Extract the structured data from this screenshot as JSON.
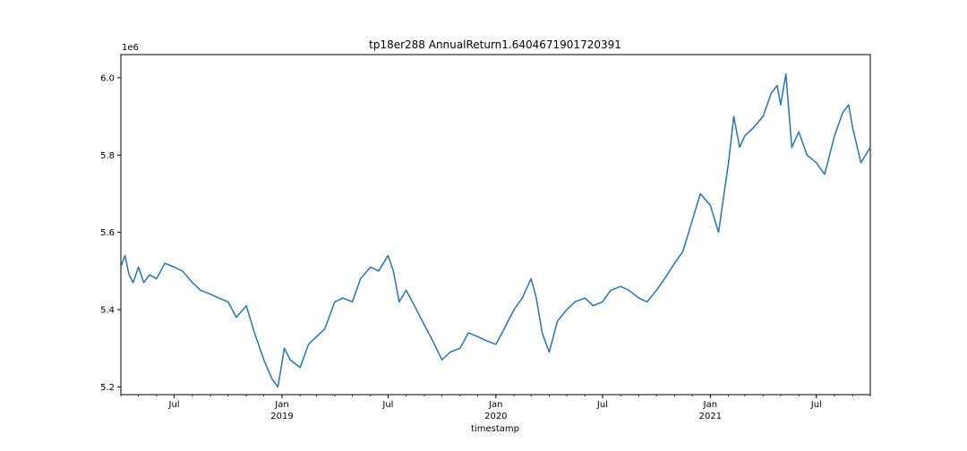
{
  "chart_data": {
    "type": "line",
    "title": "tp18er288 AnnualReturn1.6404671901720391",
    "xlabel": "timestamp",
    "ylabel": "",
    "y_offset_label": "1e6",
    "y_scale": 1000000,
    "ylim": [
      5.18,
      6.06
    ],
    "yticks": [
      5.2,
      5.4,
      5.6,
      5.8,
      6.0
    ],
    "ytick_labels": [
      "5.2",
      "5.4",
      "5.6",
      "5.8",
      "6.0"
    ],
    "xlim": [
      "2018-04-01",
      "2021-10-01"
    ],
    "xticks_major": [
      {
        "date": "2018-07-01",
        "label": "Jul",
        "year": ""
      },
      {
        "date": "2019-01-01",
        "label": "Jan",
        "year": "2019"
      },
      {
        "date": "2019-07-01",
        "label": "Jul",
        "year": ""
      },
      {
        "date": "2020-01-01",
        "label": "Jan",
        "year": "2020"
      },
      {
        "date": "2020-07-01",
        "label": "Jul",
        "year": ""
      },
      {
        "date": "2021-01-01",
        "label": "Jan",
        "year": "2021"
      },
      {
        "date": "2021-07-01",
        "label": "Jul",
        "year": ""
      }
    ],
    "color": "#1f77b4",
    "grid": false,
    "series": [
      {
        "name": "",
        "x": [
          "2018-04-01",
          "2018-04-08",
          "2018-04-15",
          "2018-04-22",
          "2018-05-01",
          "2018-05-10",
          "2018-05-20",
          "2018-06-01",
          "2018-06-15",
          "2018-07-01",
          "2018-07-15",
          "2018-08-01",
          "2018-08-15",
          "2018-09-01",
          "2018-09-15",
          "2018-10-01",
          "2018-10-15",
          "2018-11-01",
          "2018-11-15",
          "2018-12-01",
          "2018-12-15",
          "2018-12-25",
          "2019-01-05",
          "2019-01-15",
          "2019-02-01",
          "2019-02-15",
          "2019-03-01",
          "2019-03-15",
          "2019-04-01",
          "2019-04-15",
          "2019-05-01",
          "2019-05-15",
          "2019-06-01",
          "2019-06-15",
          "2019-07-01",
          "2019-07-10",
          "2019-07-20",
          "2019-08-01",
          "2019-08-15",
          "2019-09-01",
          "2019-09-15",
          "2019-10-01",
          "2019-10-15",
          "2019-11-01",
          "2019-11-15",
          "2019-12-01",
          "2019-12-15",
          "2020-01-01",
          "2020-01-15",
          "2020-02-01",
          "2020-02-15",
          "2020-03-01",
          "2020-03-10",
          "2020-03-20",
          "2020-04-01",
          "2020-04-15",
          "2020-05-01",
          "2020-05-15",
          "2020-06-01",
          "2020-06-15",
          "2020-07-01",
          "2020-07-15",
          "2020-08-01",
          "2020-08-15",
          "2020-09-01",
          "2020-09-15",
          "2020-10-01",
          "2020-10-15",
          "2020-11-01",
          "2020-11-15",
          "2020-12-01",
          "2020-12-15",
          "2021-01-01",
          "2021-01-15",
          "2021-02-01",
          "2021-02-10",
          "2021-02-20",
          "2021-03-01",
          "2021-03-15",
          "2021-04-01",
          "2021-04-15",
          "2021-04-25",
          "2021-05-01",
          "2021-05-10",
          "2021-05-20",
          "2021-06-01",
          "2021-06-15",
          "2021-07-01",
          "2021-07-15",
          "2021-08-01",
          "2021-08-15",
          "2021-08-25",
          "2021-09-01",
          "2021-09-15",
          "2021-10-01"
        ],
        "values": [
          5.51,
          5.54,
          5.49,
          5.47,
          5.51,
          5.47,
          5.49,
          5.48,
          5.52,
          5.51,
          5.5,
          5.47,
          5.45,
          5.44,
          5.43,
          5.42,
          5.38,
          5.41,
          5.34,
          5.27,
          5.22,
          5.2,
          5.3,
          5.27,
          5.25,
          5.31,
          5.33,
          5.35,
          5.42,
          5.43,
          5.42,
          5.48,
          5.51,
          5.5,
          5.54,
          5.5,
          5.42,
          5.45,
          5.41,
          5.36,
          5.32,
          5.27,
          5.29,
          5.3,
          5.34,
          5.33,
          5.32,
          5.31,
          5.35,
          5.4,
          5.43,
          5.48,
          5.43,
          5.34,
          5.29,
          5.37,
          5.4,
          5.42,
          5.43,
          5.41,
          5.42,
          5.45,
          5.46,
          5.45,
          5.43,
          5.42,
          5.45,
          5.48,
          5.52,
          5.55,
          5.63,
          5.7,
          5.67,
          5.6,
          5.78,
          5.9,
          5.82,
          5.85,
          5.87,
          5.9,
          5.96,
          5.98,
          5.93,
          6.01,
          5.82,
          5.86,
          5.8,
          5.78,
          5.75,
          5.85,
          5.91,
          5.93,
          5.87,
          5.78,
          5.82
        ]
      }
    ]
  }
}
